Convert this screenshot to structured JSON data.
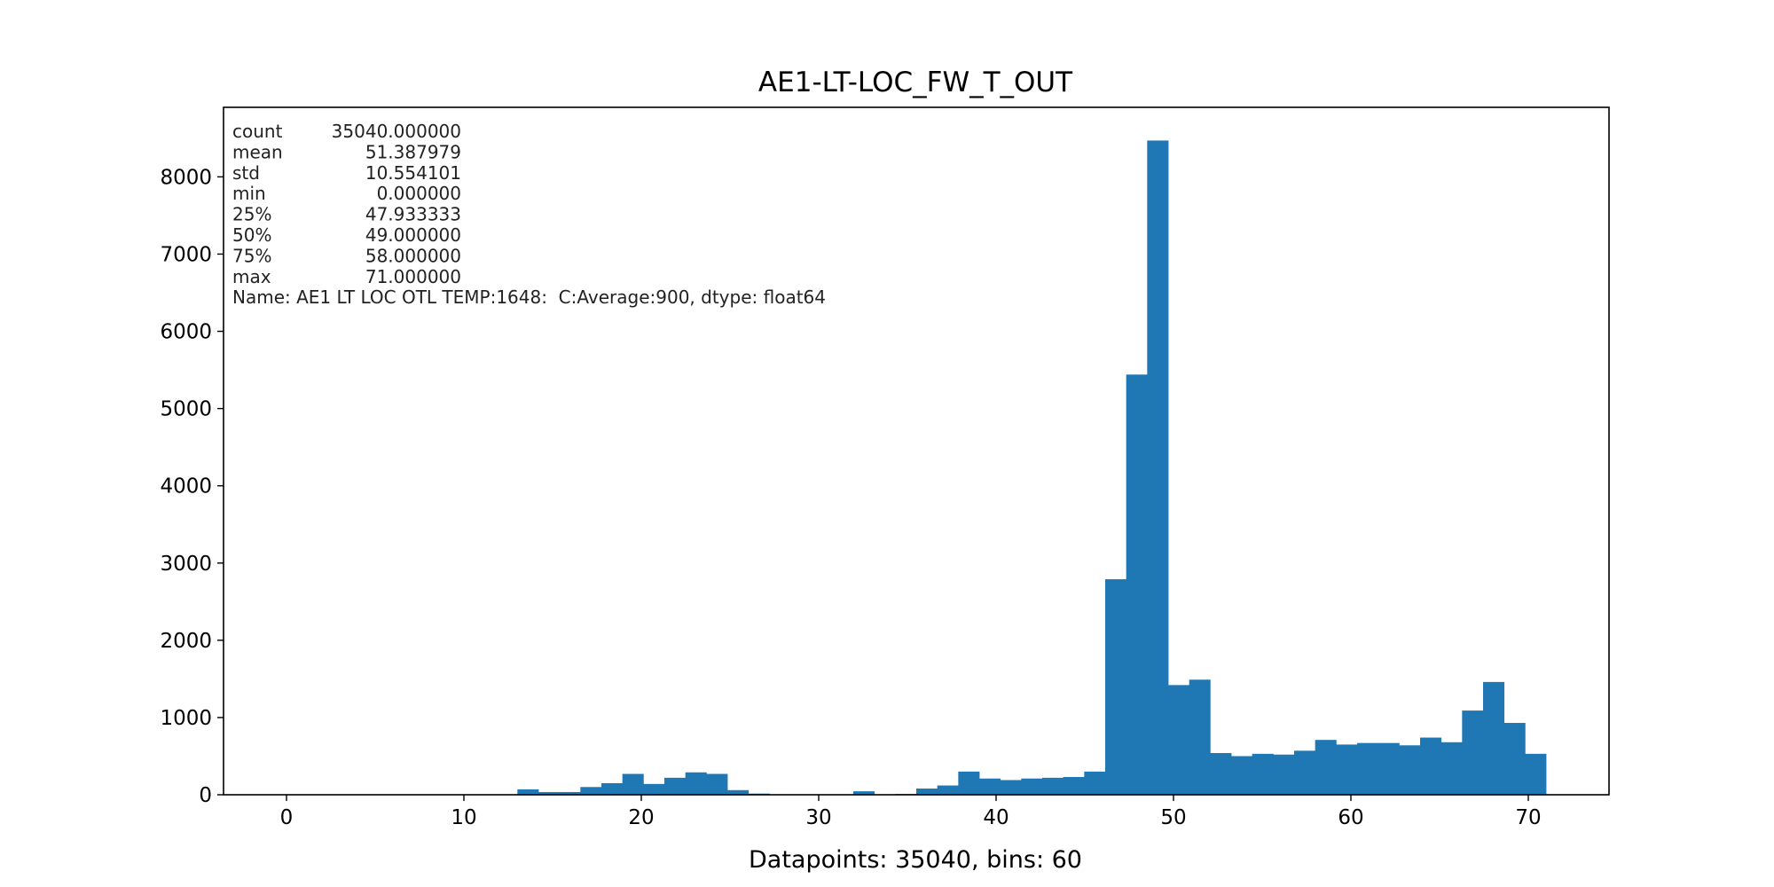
{
  "chart_data": {
    "type": "bar",
    "title": "AE1-LT-LOC_FW_T_OUT",
    "xlabel": "Datapoints: 35040, bins: 60",
    "ylabel": "",
    "grid": false,
    "xlim": [
      -3.55,
      74.55
    ],
    "ylim": [
      0,
      8900
    ],
    "xticks": [
      0,
      10,
      20,
      30,
      40,
      50,
      60,
      70
    ],
    "yticks": [
      0,
      1000,
      2000,
      3000,
      4000,
      5000,
      6000,
      7000,
      8000
    ],
    "bin_start": 0,
    "bin_width": 1.1833333,
    "bar_color": "#1f77b4",
    "values": [
      0,
      0,
      0,
      0,
      0,
      0,
      0,
      0,
      0,
      0,
      0,
      70,
      35,
      35,
      100,
      150,
      270,
      140,
      220,
      290,
      270,
      60,
      15,
      0,
      0,
      0,
      0,
      45,
      0,
      10,
      80,
      120,
      300,
      210,
      190,
      210,
      220,
      230,
      300,
      2790,
      5440,
      8470,
      1420,
      1490,
      540,
      500,
      530,
      520,
      570,
      710,
      650,
      670,
      670,
      640,
      740,
      680,
      1090,
      1460,
      930,
      530
    ],
    "annotation": {
      "lines": [
        [
          "count",
          "35040.000000"
        ],
        [
          "mean",
          "51.387979"
        ],
        [
          "std",
          "10.554101"
        ],
        [
          "min",
          "0.000000"
        ],
        [
          "25%",
          "47.933333"
        ],
        [
          "50%",
          "49.000000"
        ],
        [
          "75%",
          "58.000000"
        ],
        [
          "max",
          "71.000000"
        ]
      ],
      "name_line": "Name: AE1 LT LOC OTL TEMP:1648:  C:Average:900, dtype: float64"
    }
  }
}
